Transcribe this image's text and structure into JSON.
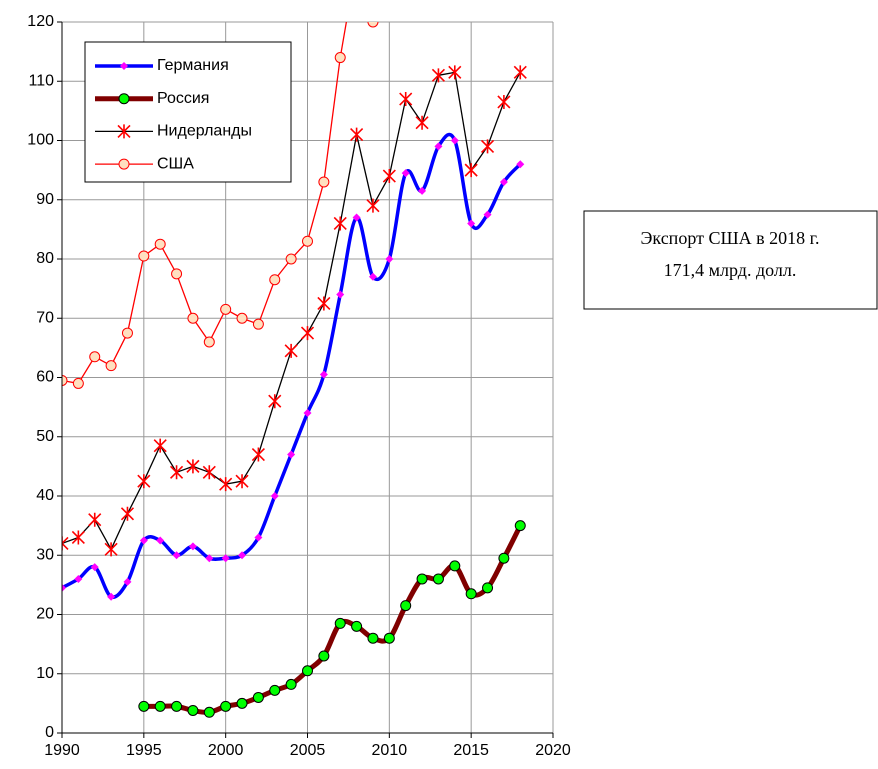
{
  "chart_data": {
    "type": "line",
    "x": [
      1990,
      1991,
      1992,
      1993,
      1994,
      1995,
      1996,
      1997,
      1998,
      1999,
      2000,
      2001,
      2002,
      2003,
      2004,
      2005,
      2006,
      2007,
      2008,
      2009,
      2010,
      2011,
      2012,
      2013,
      2014,
      2015,
      2016,
      2017,
      2018
    ],
    "xlim": [
      1990,
      2020
    ],
    "xticks": [
      1990,
      1995,
      2000,
      2005,
      2010,
      2015,
      2020
    ],
    "ylim": [
      0,
      120
    ],
    "yticks": [
      0,
      10,
      20,
      30,
      40,
      50,
      60,
      70,
      80,
      90,
      100,
      110,
      120
    ],
    "grid": true,
    "legend": "upper left",
    "series": [
      {
        "name": "Германия",
        "color": "#0000ff",
        "marker_color": "#ff00ff",
        "marker": "diamond",
        "smooth": true,
        "values": [
          24.5,
          26,
          28,
          23,
          25.5,
          32.5,
          32.5,
          30,
          31.5,
          29.5,
          29.5,
          30,
          33,
          40,
          47,
          54,
          60.5,
          74,
          87,
          77,
          80,
          94.5,
          91.5,
          99,
          100,
          86,
          87.5,
          93,
          96
        ]
      },
      {
        "name": "Россия",
        "color": "#800000",
        "marker_color": "#00ff00",
        "marker": "circle",
        "smooth": true,
        "values": [
          null,
          null,
          null,
          null,
          null,
          4.5,
          4.5,
          4.5,
          3.8,
          3.5,
          4.5,
          5,
          6,
          7.2,
          8.2,
          10.5,
          13,
          18.5,
          18,
          16,
          16,
          21.5,
          26,
          26,
          28.2,
          23.5,
          24.5,
          29.5,
          35
        ]
      },
      {
        "name": "Нидерланды",
        "color": "#000000",
        "marker_color": "#ff0000",
        "marker": "star",
        "smooth": false,
        "values": [
          32,
          33,
          36,
          31,
          37,
          42.5,
          48.5,
          44,
          45,
          44,
          42,
          42.5,
          47,
          56,
          64.5,
          67.5,
          72.5,
          86,
          101,
          89,
          94,
          107,
          103,
          111,
          111.5,
          95,
          99,
          106.5,
          111.5
        ]
      },
      {
        "name": "США",
        "color": "#ff0000",
        "marker_color": "#ffe0c0",
        "marker": "circle",
        "smooth": false,
        "values": [
          59.5,
          59,
          63.5,
          62,
          67.5,
          80.5,
          82.5,
          77.5,
          70,
          66,
          71.5,
          70,
          69,
          76.5,
          80,
          83,
          93,
          114,
          130,
          120,
          null,
          null,
          null,
          null,
          null,
          null,
          null,
          null,
          null
        ]
      }
    ],
    "annotation": [
      "Экспорт США в 2018 г.",
      "171,4 млрд. долл."
    ]
  }
}
